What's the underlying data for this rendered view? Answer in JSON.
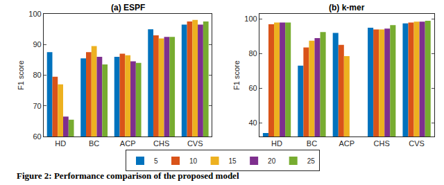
{
  "chart_data": [
    {
      "type": "bar",
      "title": "(a) ESPF",
      "y_label": "F1 score",
      "categories": [
        "HD",
        "BC",
        "ACP",
        "CHS",
        "CVS"
      ],
      "series": [
        {
          "name": "5",
          "color": "#0072BD",
          "values": [
            87.5,
            85.5,
            86,
            95,
            96.5
          ]
        },
        {
          "name": "10",
          "color": "#D95319",
          "values": [
            79.5,
            87.5,
            87,
            93,
            97.5
          ]
        },
        {
          "name": "15",
          "color": "#EDB120",
          "values": [
            77,
            89.5,
            86.5,
            92,
            98
          ]
        },
        {
          "name": "20",
          "color": "#7E2F8E",
          "values": [
            66.5,
            86,
            84.5,
            92.5,
            96.5
          ]
        },
        {
          "name": "25",
          "color": "#77AC30",
          "values": [
            65.5,
            83.5,
            84,
            92.5,
            97.5
          ]
        }
      ],
      "ylim": [
        60,
        100
      ],
      "yticks": [
        60,
        70,
        80,
        90,
        100
      ],
      "grid": false,
      "legend": "bottom"
    },
    {
      "type": "bar",
      "title": "(b) k-mer",
      "y_label": "F1 score",
      "categories": [
        "HD",
        "BC",
        "ACP",
        "CHS",
        "CVS"
      ],
      "series": [
        {
          "name": "5",
          "color": "#0072BD",
          "values": [
            34,
            73,
            92,
            95,
            97.5
          ]
        },
        {
          "name": "10",
          "color": "#D95319",
          "values": [
            97,
            83.5,
            85,
            94,
            98
          ]
        },
        {
          "name": "15",
          "color": "#EDB120",
          "values": [
            98,
            87.5,
            78.5,
            94,
            98.5
          ]
        },
        {
          "name": "20",
          "color": "#7E2F8E",
          "values": [
            98,
            89,
            null,
            94.5,
            98.5
          ]
        },
        {
          "name": "25",
          "color": "#77AC30",
          "values": [
            98,
            92.5,
            null,
            96.5,
            99
          ]
        }
      ],
      "ylim": [
        32,
        103
      ],
      "yticks": [
        40,
        60,
        80,
        100
      ],
      "grid": false,
      "legend": "bottom"
    }
  ],
  "caption": "Figure 2: Performance comparison of the proposed model"
}
